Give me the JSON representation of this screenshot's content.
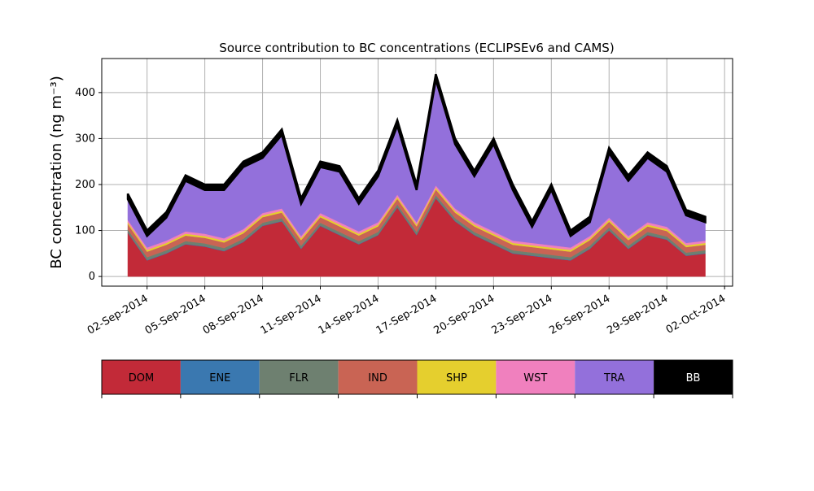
{
  "chart_data": {
    "type": "stacked_area",
    "title": "Source contribution to BC concentrations (ECLIPSEv6 and CAMS)",
    "y_label": "BC concentration (ng m⁻³)",
    "x": [
      "2014-09-01",
      "2014-09-02",
      "2014-09-03",
      "2014-09-04",
      "2014-09-05",
      "2014-09-06",
      "2014-09-07",
      "2014-09-08",
      "2014-09-09",
      "2014-09-10",
      "2014-09-11",
      "2014-09-12",
      "2014-09-13",
      "2014-09-14",
      "2014-09-15",
      "2014-09-16",
      "2014-09-17",
      "2014-09-18",
      "2014-09-19",
      "2014-09-20",
      "2014-09-21",
      "2014-09-22",
      "2014-09-23",
      "2014-09-24",
      "2014-09-25",
      "2014-09-26",
      "2014-09-27",
      "2014-09-28",
      "2014-09-29",
      "2014-09-30",
      "2014-10-01"
    ],
    "series": [
      {
        "name": "DOM",
        "color": "#c22a38",
        "values": [
          95,
          35,
          50,
          70,
          65,
          55,
          75,
          110,
          120,
          60,
          110,
          90,
          70,
          90,
          150,
          90,
          170,
          120,
          90,
          70,
          50,
          45,
          40,
          35,
          60,
          100,
          60,
          90,
          80,
          45,
          50
        ]
      },
      {
        "name": "ENE",
        "color": "#3a78b0",
        "values": [
          1,
          1,
          1,
          1,
          1,
          1,
          1,
          1,
          1,
          1,
          1,
          1,
          1,
          1,
          1,
          1,
          1,
          1,
          1,
          1,
          1,
          1,
          1,
          1,
          1,
          1,
          1,
          1,
          1,
          1,
          1
        ]
      },
      {
        "name": "FLR",
        "color": "#6e8070",
        "values": [
          6,
          6,
          6,
          6,
          6,
          6,
          6,
          6,
          6,
          6,
          6,
          6,
          6,
          6,
          6,
          6,
          6,
          6,
          6,
          6,
          6,
          6,
          6,
          6,
          6,
          6,
          6,
          6,
          6,
          6,
          6
        ]
      },
      {
        "name": "IND",
        "color": "#c96454",
        "values": [
          12,
          12,
          12,
          12,
          12,
          12,
          12,
          12,
          12,
          12,
          12,
          12,
          12,
          12,
          12,
          12,
          12,
          12,
          12,
          12,
          12,
          12,
          12,
          12,
          12,
          12,
          12,
          12,
          12,
          12,
          12
        ]
      },
      {
        "name": "SHP",
        "color": "#e5cf2e",
        "values": [
          4,
          4,
          4,
          4,
          4,
          4,
          4,
          4,
          4,
          4,
          4,
          4,
          4,
          4,
          4,
          4,
          4,
          4,
          4,
          4,
          4,
          4,
          4,
          4,
          4,
          4,
          4,
          4,
          4,
          4,
          4
        ]
      },
      {
        "name": "WST",
        "color": "#f080be",
        "values": [
          5,
          5,
          5,
          5,
          5,
          5,
          5,
          5,
          5,
          5,
          5,
          5,
          5,
          5,
          5,
          5,
          5,
          5,
          5,
          5,
          5,
          5,
          5,
          5,
          5,
          5,
          5,
          5,
          5,
          5,
          5
        ]
      },
      {
        "name": "TRA",
        "color": "#9370db",
        "values": [
          45,
          25,
          50,
          110,
          95,
          105,
          135,
          120,
          160,
          70,
          100,
          110,
          60,
          100,
          150,
          70,
          230,
          140,
          100,
          190,
          110,
          35,
          120,
          25,
          30,
          140,
          120,
          140,
          120,
          60,
          40
        ]
      },
      {
        "name": "BB",
        "color": "#000000",
        "values": [
          12,
          12,
          12,
          12,
          12,
          12,
          12,
          12,
          12,
          12,
          12,
          12,
          12,
          12,
          12,
          12,
          12,
          12,
          12,
          12,
          12,
          12,
          12,
          12,
          12,
          12,
          12,
          12,
          12,
          12,
          12
        ]
      }
    ],
    "xlim": [
      "2014-08-30T15:30",
      "2014-10-02T10:00"
    ],
    "xticks": [
      {
        "value": "2014-09-02",
        "label": "02-Sep-2014"
      },
      {
        "value": "2014-09-05",
        "label": "05-Sep-2014"
      },
      {
        "value": "2014-09-08",
        "label": "08-Sep-2014"
      },
      {
        "value": "2014-09-11",
        "label": "11-Sep-2014"
      },
      {
        "value": "2014-09-14",
        "label": "14-Sep-2014"
      },
      {
        "value": "2014-09-17",
        "label": "17-Sep-2014"
      },
      {
        "value": "2014-09-20",
        "label": "20-Sep-2014"
      },
      {
        "value": "2014-09-23",
        "label": "23-Sep-2014"
      },
      {
        "value": "2014-09-26",
        "label": "26-Sep-2014"
      },
      {
        "value": "2014-09-29",
        "label": "29-Sep-2014"
      },
      {
        "value": "2014-10-02",
        "label": "02-Oct-2014"
      }
    ],
    "ylim": [
      -21,
      474
    ],
    "yticks": [
      0,
      100,
      200,
      300,
      400
    ],
    "grid": true
  }
}
